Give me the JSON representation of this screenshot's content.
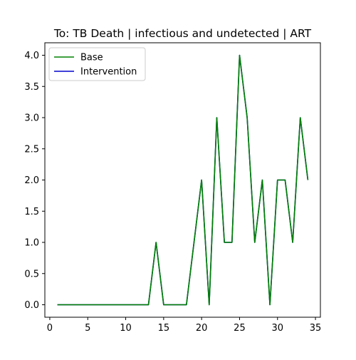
{
  "chart_data": {
    "type": "line",
    "title": "To: TB Death | infectious and undetected | ART",
    "xlabel": "",
    "ylabel": "",
    "xlim": [
      -0.65,
      35.65
    ],
    "ylim": [
      -0.2,
      4.2
    ],
    "x_ticks": [
      0,
      5,
      10,
      15,
      20,
      25,
      30,
      35
    ],
    "x_tick_labels": [
      "0",
      "5",
      "10",
      "15",
      "20",
      "25",
      "30",
      "35"
    ],
    "y_ticks": [
      0,
      0.5,
      1,
      1.5,
      2,
      2.5,
      3,
      3.5,
      4
    ],
    "y_tick_labels": [
      "0.0",
      "0.5",
      "1.0",
      "1.5",
      "2.0",
      "2.5",
      "3.0",
      "3.5",
      "4.0"
    ],
    "grid": false,
    "legend_position": "upper-left",
    "x": [
      1,
      2,
      3,
      4,
      5,
      6,
      7,
      8,
      9,
      10,
      11,
      12,
      13,
      14,
      15,
      16,
      17,
      18,
      19,
      20,
      21,
      22,
      23,
      24,
      25,
      26,
      27,
      28,
      29,
      30,
      31,
      32,
      33,
      34
    ],
    "series": [
      {
        "name": "Base",
        "color": "#008000",
        "values": [
          0,
          0,
          0,
          0,
          0,
          0,
          0,
          0,
          0,
          0,
          0,
          0,
          0,
          1,
          0,
          0,
          0,
          0,
          1,
          2,
          0,
          3,
          1,
          1,
          4,
          3,
          1,
          2,
          0,
          2,
          2,
          1,
          3,
          2
        ]
      },
      {
        "name": "Intervention",
        "color": "#0000cc",
        "values": [
          0,
          0,
          0,
          0,
          0,
          0,
          0,
          0,
          0,
          0,
          0,
          0,
          0,
          1,
          0,
          0,
          0,
          0,
          1,
          2,
          0,
          3,
          1,
          1,
          4,
          3,
          1,
          2,
          0,
          2,
          2,
          1,
          3,
          2
        ]
      }
    ]
  }
}
